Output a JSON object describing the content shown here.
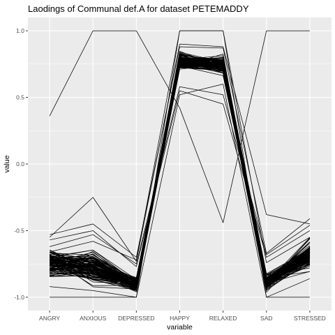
{
  "chart_data": {
    "type": "line",
    "title": "Laodings of Communal def.A for dataset PETEMADDY",
    "xlabel": "variable",
    "ylabel": "value",
    "categories": [
      "ANGRY",
      "ANXIOUS",
      "DEPRESSED",
      "HAPPY",
      "RELAXED",
      "SAD",
      "STRESSED"
    ],
    "ylim": [
      -1.1,
      1.1
    ],
    "yticks": [
      {
        "value": 1.0,
        "label": "1.0"
      },
      {
        "value": 0.5,
        "label": "0.5"
      },
      {
        "value": 0.0,
        "label": "0.0"
      },
      {
        "value": -0.5,
        "label": "-0.5"
      },
      {
        "value": -1.0,
        "label": "-1.0"
      }
    ],
    "grid": true,
    "legend": "none",
    "colors": {
      "panel": "#ebebeb",
      "grid": "#ffffff",
      "line": "#000000"
    },
    "series_generation": {
      "count": 110,
      "center": [
        -0.74,
        -0.78,
        -0.91,
        0.77,
        0.74,
        -0.89,
        -0.67
      ],
      "spread": [
        0.16,
        0.18,
        0.09,
        0.1,
        0.11,
        0.09,
        0.18
      ],
      "min": [
        -1.0,
        -1.0,
        -1.0,
        0.55,
        0.45,
        -1.0,
        -1.0
      ],
      "max": [
        -0.52,
        -0.45,
        -0.68,
        0.9,
        0.9,
        -0.67,
        -0.4
      ]
    },
    "series": [
      {
        "values": [
          0.36,
          1.0,
          1.0,
          0.42,
          -0.44,
          1.0,
          1.0
        ]
      },
      {
        "values": [
          -1.0,
          -1.0,
          -1.0,
          1.0,
          1.0,
          -1.0,
          -1.0
        ]
      },
      {
        "values": [
          -0.55,
          -0.25,
          -0.73,
          0.9,
          0.88,
          -0.38,
          -0.45
        ]
      },
      {
        "values": [
          -0.53,
          -0.45,
          -0.7,
          0.88,
          0.87,
          -0.67,
          -0.41
        ]
      },
      {
        "values": [
          -0.57,
          -0.5,
          -0.77,
          0.55,
          0.45,
          -0.7,
          -0.5
        ]
      },
      {
        "values": [
          -0.92,
          -0.95,
          -1.0,
          0.52,
          0.6,
          -1.0,
          -0.86
        ]
      },
      {
        "values": [
          -0.62,
          -0.53,
          -0.75,
          0.58,
          0.52,
          -0.68,
          -0.46
        ]
      },
      {
        "values": [
          -0.66,
          -0.58,
          -0.72,
          1.0,
          1.0,
          -0.74,
          -0.55
        ]
      }
    ]
  }
}
